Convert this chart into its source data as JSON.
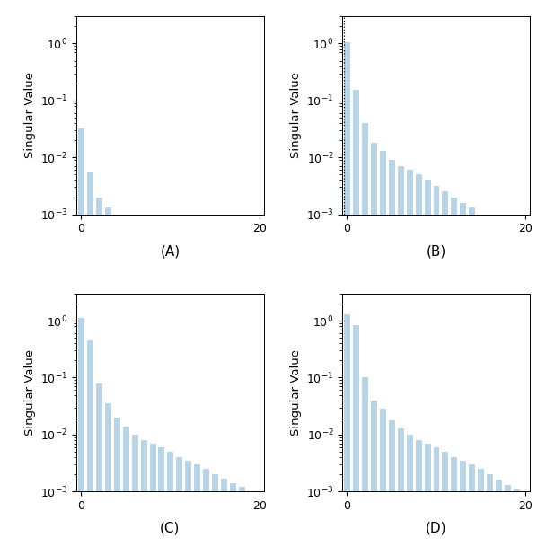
{
  "bar_color": "#b8d4e8",
  "bar_edgecolor": "#9dc4d5",
  "ylim_low": 0.001,
  "ylim_high": 3.0,
  "xlim_low": -0.5,
  "xlim_high": 20.5,
  "ylabel": "Singular Value",
  "captions": [
    "(A)",
    "(B)",
    "(C)",
    "(D)"
  ],
  "bar_width": 0.6,
  "subplot_A": {
    "values": [
      0.032,
      0.0055,
      0.002,
      0.0013
    ],
    "dotted_line_x": null
  },
  "subplot_B": {
    "values": [
      1.05,
      0.155,
      0.04,
      0.018,
      0.013,
      0.009,
      0.007,
      0.006,
      0.005,
      0.004,
      0.0032,
      0.0025,
      0.002,
      0.0016,
      0.0013
    ],
    "dotted_line_x": -0.3
  },
  "subplot_C": {
    "values": [
      1.1,
      0.45,
      0.08,
      0.036,
      0.02,
      0.014,
      0.01,
      0.008,
      0.007,
      0.006,
      0.005,
      0.004,
      0.0035,
      0.003,
      0.0025,
      0.002,
      0.0017,
      0.0014,
      0.0012,
      0.001
    ],
    "dotted_line_x": null
  },
  "subplot_D": {
    "values": [
      1.3,
      0.85,
      0.1,
      0.04,
      0.028,
      0.018,
      0.013,
      0.01,
      0.008,
      0.007,
      0.006,
      0.005,
      0.004,
      0.0035,
      0.003,
      0.0025,
      0.002,
      0.0016,
      0.0013,
      0.0011
    ],
    "dotted_line_x": null
  },
  "xticks": [
    0,
    20
  ],
  "yticks": [
    0.001,
    0.01,
    0.1,
    1.0
  ],
  "figsize": [
    6.08,
    6.08
  ],
  "dpi": 100,
  "caption_fontsize": 11
}
